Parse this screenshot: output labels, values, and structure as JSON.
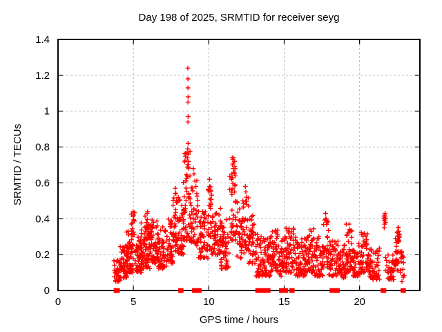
{
  "chart_data": {
    "type": "scatter",
    "title": "Day 198 of 2025, SRMTID for receiver seyg",
    "xlabel": "GPS time / hours",
    "ylabel": "SRMTID / TECUs",
    "xlim": [
      0,
      24
    ],
    "ylim": [
      0,
      1.4
    ],
    "xticks": [
      0,
      5,
      10,
      15,
      20
    ],
    "yticks": [
      0,
      0.2,
      0.4,
      0.6,
      0.8,
      1,
      1.2,
      1.4
    ],
    "grid": "dashed-major-both-axes",
    "legend": "none",
    "marker": "plus",
    "zero_value_marker": "filled-square",
    "colors": {
      "marker": "#ff0000",
      "grid": "#b8b8b8",
      "border": "#000000",
      "text": "#000000",
      "background": "#ffffff"
    },
    "series_name": "SRMTID",
    "points": [
      [
        8.61,
        1.24
      ],
      [
        8.62,
        1.18
      ],
      [
        8.62,
        1.13
      ],
      [
        8.63,
        1.08
      ],
      [
        8.62,
        1.05
      ],
      [
        8.63,
        0.97
      ],
      [
        8.62,
        0.94
      ],
      [
        8.63,
        0.82
      ],
      [
        8.6,
        0.79
      ],
      [
        8.64,
        0.76
      ],
      [
        8.58,
        0.74
      ],
      [
        8.66,
        0.72
      ],
      [
        11.5,
        0.62
      ],
      [
        11.53,
        0.65
      ],
      [
        11.55,
        0.74
      ],
      [
        11.57,
        0.7
      ],
      [
        11.6,
        0.73
      ],
      [
        11.62,
        0.68
      ],
      [
        11.63,
        0.71
      ],
      [
        11.65,
        0.74
      ],
      [
        11.67,
        0.66
      ],
      [
        11.7,
        0.72
      ],
      [
        11.73,
        0.69
      ],
      [
        11.75,
        0.64
      ],
      [
        21.6,
        0.4
      ],
      [
        21.62,
        0.41
      ],
      [
        21.64,
        0.39
      ],
      [
        21.66,
        0.42
      ],
      [
        21.68,
        0.4
      ],
      [
        21.7,
        0.41
      ],
      [
        21.72,
        0.38
      ],
      [
        21.74,
        0.4
      ],
      [
        21.65,
        0.37
      ],
      [
        21.69,
        0.43
      ],
      [
        21.63,
        0.35
      ],
      [
        21.71,
        0.4
      ],
      [
        10.02,
        0.55
      ],
      [
        10.05,
        0.62
      ],
      [
        10.06,
        0.58
      ],
      [
        10.08,
        0.51
      ],
      [
        10.1,
        0.47
      ],
      [
        8.97,
        0.68
      ],
      [
        9.02,
        0.65
      ],
      [
        9.08,
        0.61
      ],
      [
        9.14,
        0.58
      ],
      [
        9.2,
        0.54
      ],
      [
        7.78,
        0.57
      ],
      [
        7.82,
        0.54
      ],
      [
        7.86,
        0.5
      ],
      [
        12.42,
        0.58
      ],
      [
        12.46,
        0.55
      ],
      [
        12.5,
        0.52
      ],
      [
        17.75,
        0.43
      ],
      [
        17.78,
        0.4
      ],
      [
        17.82,
        0.38
      ],
      [
        22.55,
        0.35
      ],
      [
        22.6,
        0.33
      ],
      [
        22.63,
        0.31
      ],
      [
        4.98,
        0.44
      ],
      [
        5.02,
        0.42
      ],
      [
        5.95,
        0.44
      ],
      [
        19.3,
        0.37
      ],
      [
        19.33,
        0.34
      ]
    ],
    "zero_times": [
      3.85,
      3.88,
      3.91,
      3.94,
      8.13,
      8.16,
      9.05,
      9.08,
      9.3,
      9.36,
      13.25,
      13.28,
      13.31,
      13.34,
      13.37,
      13.4,
      13.7,
      13.93,
      14.82,
      14.86,
      14.97,
      15.0,
      15.1,
      15.5,
      15.53,
      18.17,
      18.2,
      18.23,
      18.26,
      18.29,
      18.32,
      18.35,
      18.38,
      18.41,
      18.44,
      18.47,
      18.5,
      18.53,
      21.55,
      21.58,
      21.61,
      22.88,
      22.91
    ],
    "band_format": [
      "t_start",
      "t_end",
      "v_min",
      "v_max",
      "count"
    ],
    "density_bands": [
      [
        3.7,
        4.15,
        0.05,
        0.17,
        35
      ],
      [
        4.1,
        4.6,
        0.07,
        0.25,
        55
      ],
      [
        4.55,
        5.0,
        0.1,
        0.33,
        55
      ],
      [
        4.85,
        5.1,
        0.3,
        0.44,
        16
      ],
      [
        5.1,
        5.55,
        0.1,
        0.3,
        55
      ],
      [
        5.5,
        6.1,
        0.12,
        0.38,
        70
      ],
      [
        5.75,
        6.05,
        0.3,
        0.44,
        12
      ],
      [
        6.0,
        6.6,
        0.15,
        0.4,
        65
      ],
      [
        6.6,
        7.2,
        0.12,
        0.36,
        60
      ],
      [
        7.2,
        7.65,
        0.15,
        0.4,
        45
      ],
      [
        7.6,
        7.95,
        0.22,
        0.57,
        32
      ],
      [
        7.95,
        8.35,
        0.2,
        0.52,
        40
      ],
      [
        8.3,
        8.8,
        0.28,
        0.78,
        60
      ],
      [
        8.8,
        9.3,
        0.25,
        0.66,
        45
      ],
      [
        9.3,
        9.95,
        0.18,
        0.45,
        55
      ],
      [
        9.95,
        10.2,
        0.22,
        0.58,
        25
      ],
      [
        10.2,
        10.8,
        0.2,
        0.48,
        60
      ],
      [
        10.8,
        11.35,
        0.12,
        0.4,
        55
      ],
      [
        11.35,
        11.85,
        0.28,
        0.72,
        40
      ],
      [
        11.85,
        12.35,
        0.18,
        0.52,
        45
      ],
      [
        12.35,
        12.65,
        0.22,
        0.56,
        22
      ],
      [
        12.65,
        13.1,
        0.15,
        0.42,
        40
      ],
      [
        13.1,
        13.6,
        0.08,
        0.32,
        45
      ],
      [
        13.6,
        14.1,
        0.08,
        0.3,
        50
      ],
      [
        14.1,
        14.6,
        0.1,
        0.34,
        50
      ],
      [
        14.6,
        15.1,
        0.08,
        0.3,
        45
      ],
      [
        15.1,
        15.75,
        0.1,
        0.36,
        55
      ],
      [
        15.75,
        16.4,
        0.08,
        0.3,
        60
      ],
      [
        16.4,
        17.0,
        0.1,
        0.35,
        55
      ],
      [
        17.0,
        17.6,
        0.08,
        0.3,
        50
      ],
      [
        17.6,
        17.95,
        0.13,
        0.42,
        28
      ],
      [
        17.95,
        18.6,
        0.08,
        0.28,
        50
      ],
      [
        18.6,
        19.1,
        0.07,
        0.26,
        45
      ],
      [
        19.1,
        19.5,
        0.1,
        0.37,
        40
      ],
      [
        19.5,
        20.1,
        0.08,
        0.28,
        50
      ],
      [
        20.1,
        20.65,
        0.1,
        0.33,
        50
      ],
      [
        20.65,
        21.35,
        0.06,
        0.24,
        55
      ],
      [
        21.7,
        22.35,
        0.06,
        0.2,
        40
      ],
      [
        22.3,
        22.62,
        0.1,
        0.3,
        25
      ],
      [
        22.45,
        22.68,
        0.27,
        0.36,
        14
      ],
      [
        22.68,
        23.0,
        0.05,
        0.22,
        18
      ]
    ]
  }
}
